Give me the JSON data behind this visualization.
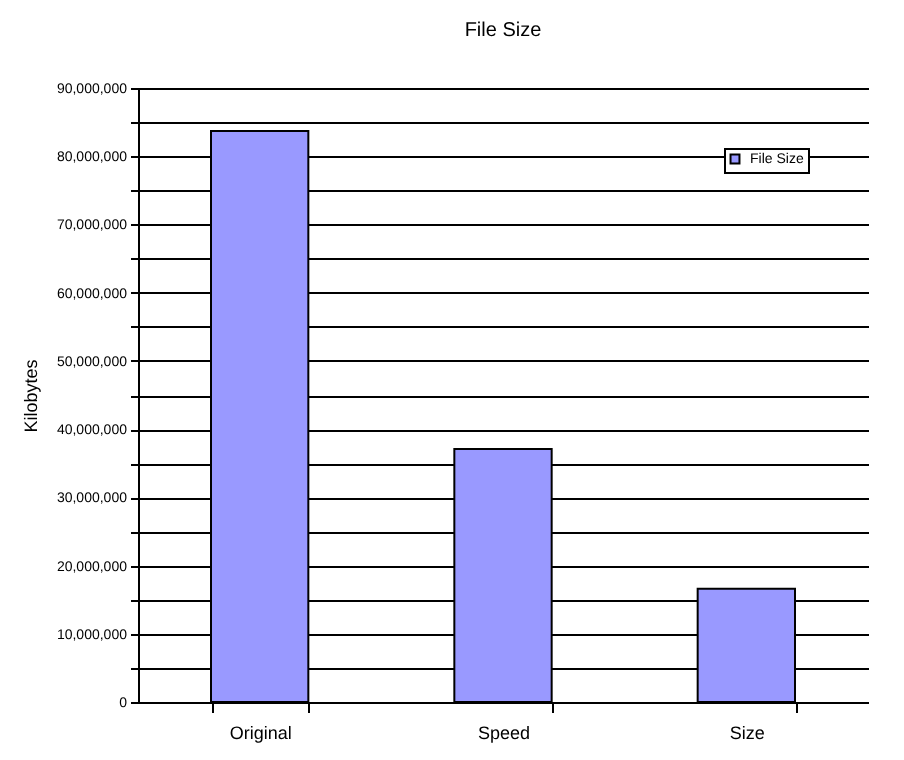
{
  "chart_data": {
    "type": "bar",
    "title": "File Size",
    "ylabel": "Kilobytes",
    "categories": [
      "Original",
      "Speed",
      "Size"
    ],
    "series": [
      {
        "name": "File Size",
        "color": "#9999ff",
        "values": [
          83700000,
          37100000,
          16600000
        ]
      }
    ],
    "ylim": [
      0,
      90000000
    ],
    "yticks": [
      {
        "value": 0,
        "label": "0"
      },
      {
        "value": 5000000,
        "label": null
      },
      {
        "value": 10000000,
        "label": "10,000,000"
      },
      {
        "value": 15000000,
        "label": null
      },
      {
        "value": 20000000,
        "label": "20,000,000"
      },
      {
        "value": 25000000,
        "label": null
      },
      {
        "value": 30000000,
        "label": "30,000,000"
      },
      {
        "value": 35000000,
        "label": null
      },
      {
        "value": 40000000,
        "label": "40,000,000"
      },
      {
        "value": 45000000,
        "label": null
      },
      {
        "value": 50000000,
        "label": "50,000,000"
      },
      {
        "value": 55000000,
        "label": null
      },
      {
        "value": 60000000,
        "label": "60,000,000"
      },
      {
        "value": 65000000,
        "label": null
      },
      {
        "value": 70000000,
        "label": "70,000,000"
      },
      {
        "value": 75000000,
        "label": null
      },
      {
        "value": 80000000,
        "label": "80,000,000"
      },
      {
        "value": 85000000,
        "label": null
      },
      {
        "value": 90000000,
        "label": "90,000,000"
      }
    ],
    "grid": "y",
    "legend": "top right"
  }
}
